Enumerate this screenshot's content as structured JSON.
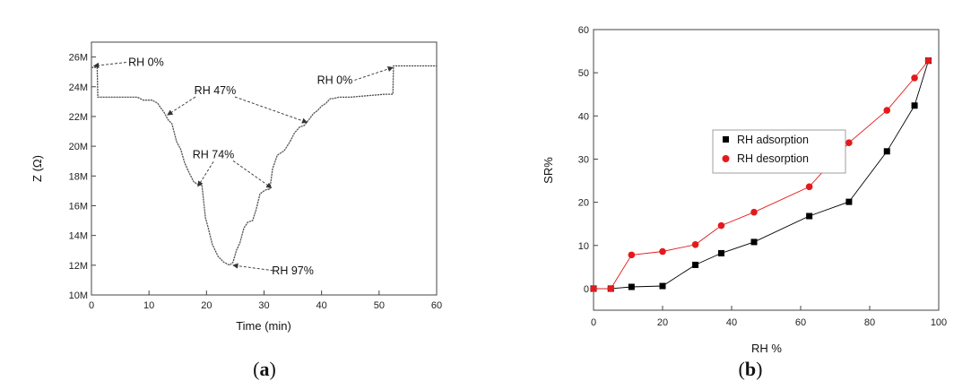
{
  "chart_data": [
    {
      "type": "line",
      "panel_label": {
        "open": "(",
        "letter": "a",
        "close": ")"
      },
      "xlabel": "Time (min)",
      "ylabel": "Z (Ω)",
      "xlim": [
        0,
        60
      ],
      "ylim": [
        10,
        27
      ],
      "xticks": [
        "0",
        "10",
        "20",
        "30",
        "40",
        "50",
        "60"
      ],
      "yticks": [
        {
          "value": 10,
          "label": "10M"
        },
        {
          "value": 12,
          "label": "12M"
        },
        {
          "value": 14,
          "label": "14M"
        },
        {
          "value": 16,
          "label": "16M"
        },
        {
          "value": 18,
          "label": "18M"
        },
        {
          "value": 20,
          "label": "20M"
        },
        {
          "value": 22,
          "label": "22M"
        },
        {
          "value": 24,
          "label": "24M"
        },
        {
          "value": 26,
          "label": "26M"
        }
      ],
      "y_unit": "MΩ",
      "grid": false,
      "series": [
        {
          "color": "#555555",
          "x": [
            0,
            1,
            1.1,
            2,
            8,
            9,
            10.5,
            11.5,
            12,
            12.6,
            13.3,
            14,
            14.8,
            15.5,
            16.2,
            17,
            17.8,
            18.6,
            19.2,
            19.8,
            20.3,
            21,
            22,
            23,
            24,
            24.6,
            25.2,
            25.8,
            26.5,
            27.2,
            28,
            28.6,
            29.3,
            30,
            30.5,
            31,
            31.5,
            32.3,
            33.5,
            34.5,
            35.3,
            36.2,
            37,
            37.8,
            38.6,
            39.3,
            40,
            40.8,
            41.5,
            42,
            43,
            45,
            48,
            51,
            52.4,
            52.5,
            53,
            56,
            60
          ],
          "y": [
            25.3,
            25.3,
            23.3,
            23.3,
            23.3,
            23.1,
            23.1,
            22.9,
            22.6,
            22.3,
            21.8,
            21.5,
            20.3,
            19.8,
            18.9,
            18.2,
            17.6,
            17.4,
            17.4,
            15.2,
            14.5,
            13.4,
            12.6,
            12.2,
            12.0,
            12.2,
            13.0,
            13.5,
            14.5,
            14.9,
            15.0,
            15.7,
            16.8,
            17.0,
            17.1,
            17.1,
            18.5,
            19.4,
            19.7,
            20.3,
            20.9,
            21.3,
            21.4,
            21.8,
            22.2,
            22.4,
            22.7,
            22.9,
            23.2,
            23.2,
            23.3,
            23.3,
            23.4,
            23.5,
            23.5,
            25.4,
            25.4,
            25.4,
            25.4
          ]
        }
      ],
      "annotations": [
        {
          "text": "RH 0%",
          "x": 9.5,
          "y": 25.4,
          "arrow_to": [
            0.4,
            25.4
          ]
        },
        {
          "text": "RH 47%",
          "x": 21.5,
          "y": 23.5,
          "arrow_to": [
            13.2,
            22.1
          ]
        },
        {
          "text": "RH 47%",
          "x": 21.5,
          "y": 23.5,
          "arrow_to": [
            37.5,
            21.6
          ]
        },
        {
          "text": "RH 74%",
          "x": 21.2,
          "y": 19.2,
          "arrow_to": [
            18.5,
            17.3
          ]
        },
        {
          "text": "RH 74%",
          "x": 21.2,
          "y": 19.2,
          "arrow_to": [
            31.3,
            17.2
          ]
        },
        {
          "text": "RH 97%",
          "x": 35,
          "y": 11.4,
          "arrow_to": [
            24.6,
            12.0
          ]
        },
        {
          "text": "RH 0%",
          "x": 42.3,
          "y": 24.2,
          "arrow_to": [
            52.4,
            25.3
          ]
        }
      ]
    },
    {
      "type": "scatter",
      "panel_label": {
        "open": "(",
        "letter": "b",
        "close": ")"
      },
      "xlabel": "RH %",
      "ylabel": "SR%",
      "xlim": [
        0,
        100
      ],
      "ylim": [
        -5,
        60
      ],
      "xticks": [
        "0",
        "20",
        "40",
        "60",
        "80",
        "100"
      ],
      "yticks": [
        "0",
        "10",
        "20",
        "30",
        "40",
        "50",
        "60"
      ],
      "grid": false,
      "legend": "upper-center",
      "series": [
        {
          "name": "RH adsorption",
          "marker": "square",
          "color": "#000000",
          "x": [
            0,
            5,
            11,
            20,
            29.5,
            37,
            46.5,
            62.5,
            74,
            85,
            93,
            97
          ],
          "y": [
            0,
            0,
            0.4,
            0.6,
            5.5,
            8.2,
            10.8,
            16.8,
            20.1,
            31.8,
            42.4,
            52.8
          ]
        },
        {
          "name": "RH desorption",
          "marker": "circle",
          "color": "#e31a1c",
          "x": [
            0,
            5,
            11,
            20,
            29.5,
            37,
            46.5,
            62.5,
            74,
            85,
            93,
            97
          ],
          "y": [
            0,
            0,
            7.8,
            8.6,
            10.2,
            14.6,
            17.7,
            23.6,
            33.8,
            41.3,
            48.8,
            52.8
          ]
        }
      ]
    }
  ]
}
